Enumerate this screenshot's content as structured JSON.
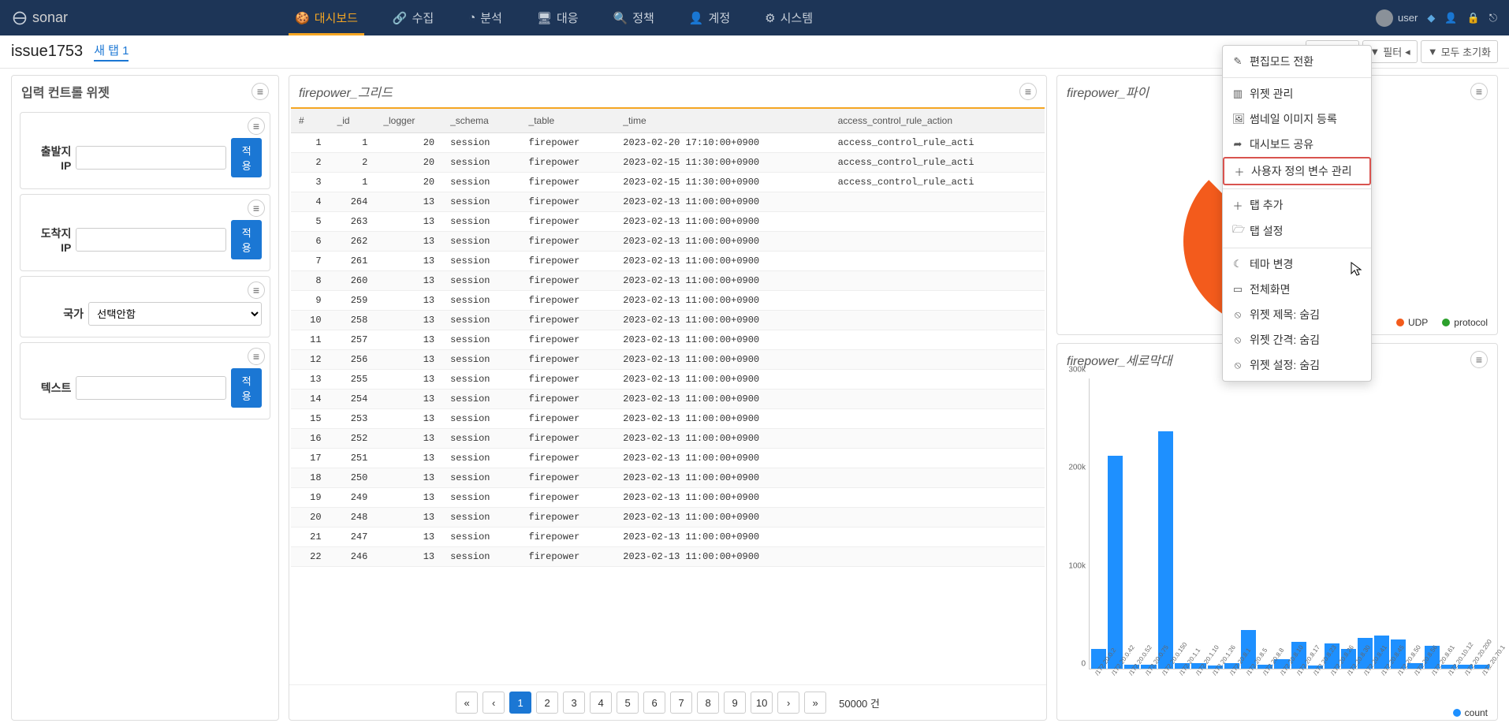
{
  "brand": "sonar",
  "nav": [
    {
      "icon": "dashboard",
      "label": "대시보드",
      "active": true
    },
    {
      "icon": "share",
      "label": "수집"
    },
    {
      "icon": "pie",
      "label": "분석"
    },
    {
      "icon": "monitor",
      "label": "대응"
    },
    {
      "icon": "search",
      "label": "정책"
    },
    {
      "icon": "user",
      "label": "계정"
    },
    {
      "icon": "gear",
      "label": "시스템"
    }
  ],
  "user_label": "user",
  "page_title": "issue1753",
  "tab_label": "새 탭 1",
  "toolbar": {
    "manage": "관리",
    "filter": "필터",
    "reset": "모두 초기화"
  },
  "left_title": "입력 컨트롤 위젯",
  "controls": [
    {
      "label": "출발지 IP",
      "type": "text",
      "apply": "적용"
    },
    {
      "label": "도착지 IP",
      "type": "text",
      "apply": "적용"
    },
    {
      "label": "국가",
      "type": "select",
      "placeholder": "선택안함"
    },
    {
      "label": "텍스트",
      "type": "text",
      "apply": "적용"
    }
  ],
  "grid": {
    "title": "firepower_그리드",
    "columns": [
      "#",
      "_id",
      "_logger",
      "_schema",
      "_table",
      "_time",
      "access_control_rule_action"
    ],
    "rows": [
      [
        "1",
        "1",
        "20",
        "session",
        "firepower",
        "2023-02-20 17:10:00+0900",
        "access_control_rule_acti"
      ],
      [
        "2",
        "2",
        "20",
        "session",
        "firepower",
        "2023-02-15 11:30:00+0900",
        "access_control_rule_acti"
      ],
      [
        "3",
        "1",
        "20",
        "session",
        "firepower",
        "2023-02-15 11:30:00+0900",
        "access_control_rule_acti"
      ],
      [
        "4",
        "264",
        "13",
        "session",
        "firepower",
        "2023-02-13 11:00:00+0900",
        ""
      ],
      [
        "5",
        "263",
        "13",
        "session",
        "firepower",
        "2023-02-13 11:00:00+0900",
        ""
      ],
      [
        "6",
        "262",
        "13",
        "session",
        "firepower",
        "2023-02-13 11:00:00+0900",
        ""
      ],
      [
        "7",
        "261",
        "13",
        "session",
        "firepower",
        "2023-02-13 11:00:00+0900",
        ""
      ],
      [
        "8",
        "260",
        "13",
        "session",
        "firepower",
        "2023-02-13 11:00:00+0900",
        ""
      ],
      [
        "9",
        "259",
        "13",
        "session",
        "firepower",
        "2023-02-13 11:00:00+0900",
        ""
      ],
      [
        "10",
        "258",
        "13",
        "session",
        "firepower",
        "2023-02-13 11:00:00+0900",
        ""
      ],
      [
        "11",
        "257",
        "13",
        "session",
        "firepower",
        "2023-02-13 11:00:00+0900",
        ""
      ],
      [
        "12",
        "256",
        "13",
        "session",
        "firepower",
        "2023-02-13 11:00:00+0900",
        ""
      ],
      [
        "13",
        "255",
        "13",
        "session",
        "firepower",
        "2023-02-13 11:00:00+0900",
        ""
      ],
      [
        "14",
        "254",
        "13",
        "session",
        "firepower",
        "2023-02-13 11:00:00+0900",
        ""
      ],
      [
        "15",
        "253",
        "13",
        "session",
        "firepower",
        "2023-02-13 11:00:00+0900",
        ""
      ],
      [
        "16",
        "252",
        "13",
        "session",
        "firepower",
        "2023-02-13 11:00:00+0900",
        ""
      ],
      [
        "17",
        "251",
        "13",
        "session",
        "firepower",
        "2023-02-13 11:00:00+0900",
        ""
      ],
      [
        "18",
        "250",
        "13",
        "session",
        "firepower",
        "2023-02-13 11:00:00+0900",
        ""
      ],
      [
        "19",
        "249",
        "13",
        "session",
        "firepower",
        "2023-02-13 11:00:00+0900",
        ""
      ],
      [
        "20",
        "248",
        "13",
        "session",
        "firepower",
        "2023-02-13 11:00:00+0900",
        ""
      ],
      [
        "21",
        "247",
        "13",
        "session",
        "firepower",
        "2023-02-13 11:00:00+0900",
        ""
      ],
      [
        "22",
        "246",
        "13",
        "session",
        "firepower",
        "2023-02-13 11:00:00+0900",
        ""
      ]
    ],
    "pages": [
      "«",
      "‹",
      "1",
      "2",
      "3",
      "4",
      "5",
      "6",
      "7",
      "8",
      "9",
      "10",
      "›",
      "»"
    ],
    "page_active": 2,
    "total_label": "50000 건"
  },
  "pie": {
    "title": "firepower_파이",
    "color": "#f35b1c",
    "legend": [
      {
        "color": "#f35b1c",
        "label": "UDP"
      },
      {
        "color": "#2ca02c",
        "label": "protocol"
      }
    ]
  },
  "bar": {
    "title": "firepower_세로막대",
    "ylim": 300000,
    "yticks": [
      {
        "v": 0,
        "l": "0"
      },
      {
        "v": 100000,
        "l": "100k"
      },
      {
        "v": 200000,
        "l": "200k"
      },
      {
        "v": 300000,
        "l": "300k"
      }
    ],
    "bar_color": "#1e90ff",
    "categories": [
      "/172.20.0.2",
      "/172.20.0.42",
      "/172.20.0.52",
      "/172.20.0.75",
      "/172.20.0.150",
      "/172.20.1.1",
      "/172.20.1.10",
      "/172.20.1.26",
      "/172.20.8.1",
      "/172.20.8.5",
      "/172.20.8.8",
      "/172.20.8.10",
      "/172.20.8.17",
      "/172.20.8.23",
      "/172.20.8.26",
      "/172.20.8.30",
      "/172.20.8.41",
      "/172.20.8.45",
      "/172.20.8.50",
      "/172.20.8.56",
      "/172.20.8.61",
      "/172.20.10.12",
      "/172.20.20.200",
      "/172.20.70.1"
    ],
    "values": [
      20000,
      220000,
      4000,
      4000,
      245000,
      6000,
      6000,
      3000,
      6000,
      40000,
      4000,
      10000,
      28000,
      3000,
      26000,
      20000,
      32000,
      34000,
      30000,
      6000,
      24000,
      4000,
      4000,
      4000
    ],
    "legend_label": "count",
    "legend_color": "#1e90ff"
  },
  "dropdown": [
    {
      "icon": "✎",
      "label": "편집모드 전환"
    },
    {
      "sep": true
    },
    {
      "icon": "▥",
      "label": "위젯 관리"
    },
    {
      "icon": "🖼",
      "label": "썸네일 이미지 등록"
    },
    {
      "icon": "➦",
      "label": "대시보드 공유"
    },
    {
      "icon": "＋",
      "label": "사용자 정의 변수 관리",
      "highlight": true
    },
    {
      "sep": true
    },
    {
      "icon": "＋",
      "label": "탭 추가"
    },
    {
      "icon": "🗁",
      "label": "탭 설정"
    },
    {
      "sep": true
    },
    {
      "icon": "☾",
      "label": "테마 변경"
    },
    {
      "icon": "▭",
      "label": "전체화면"
    },
    {
      "icon": "⦸",
      "label": "위젯 제목: 숨김"
    },
    {
      "icon": "⦸",
      "label": "위젯 간격: 숨김"
    },
    {
      "icon": "⦸",
      "label": "위젯 설정: 숨김"
    }
  ]
}
